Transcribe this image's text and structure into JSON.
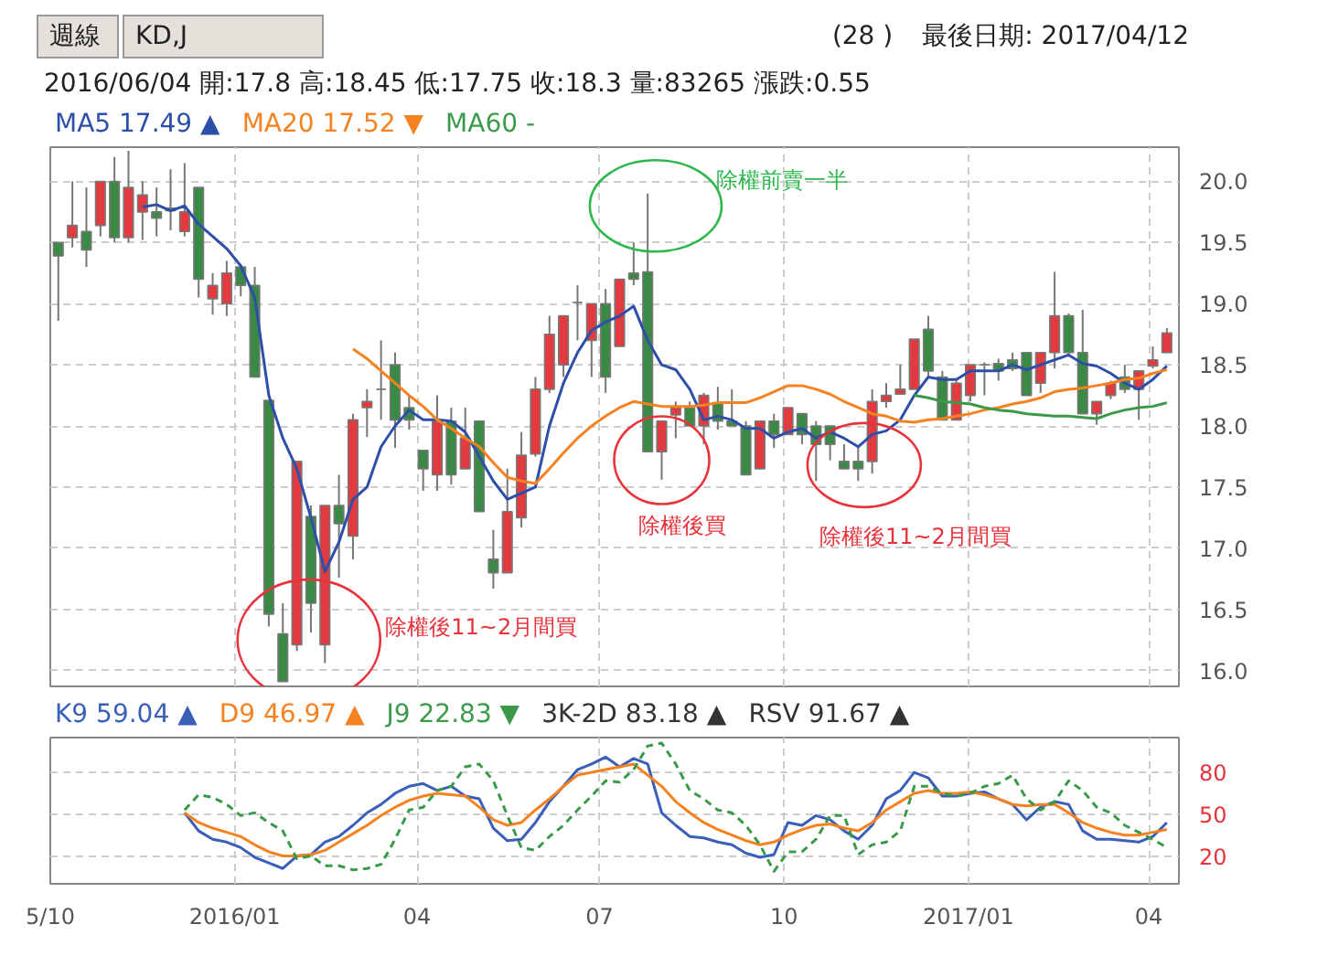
{
  "chart_data": [
    {
      "type": "candlestick",
      "title": "2016/06/04  開:17.8  高:18.45  低:17.75  收:18.3  量:83265  漲跌:0.55",
      "x": [
        "2015-10-05",
        "2015-10-12",
        "2015-10-19",
        "2015-10-26",
        "2015-11-02",
        "2015-11-09",
        "2015-11-16",
        "2015-11-23",
        "2015-11-30",
        "2015-12-07",
        "2015-12-14",
        "2015-12-21",
        "2015-12-28",
        "2016-01-04",
        "2016-01-11",
        "2016-01-18",
        "2016-01-25",
        "2016-02-01",
        "2016-02-08",
        "2016-02-15",
        "2016-02-22",
        "2016-02-29",
        "2016-03-07",
        "2016-03-14",
        "2016-03-21",
        "2016-03-28",
        "2016-04-04",
        "2016-04-11",
        "2016-04-18",
        "2016-04-25",
        "2016-05-02",
        "2016-05-09",
        "2016-05-16",
        "2016-05-23",
        "2016-05-30",
        "2016-06-06",
        "2016-06-13",
        "2016-06-20",
        "2016-06-27",
        "2016-07-04",
        "2016-07-11",
        "2016-07-18",
        "2016-07-25",
        "2016-08-01",
        "2016-08-08",
        "2016-08-15",
        "2016-08-22",
        "2016-08-29",
        "2016-09-05",
        "2016-09-12",
        "2016-09-19",
        "2016-09-26",
        "2016-10-03",
        "2016-10-10",
        "2016-10-17",
        "2016-10-24",
        "2016-10-31",
        "2016-11-07",
        "2016-11-14",
        "2016-11-21",
        "2016-11-28",
        "2016-12-05",
        "2016-12-12",
        "2016-12-19",
        "2016-12-26",
        "2017-01-02",
        "2017-01-09",
        "2017-01-16",
        "2017-01-23",
        "2017-01-30",
        "2017-02-06",
        "2017-02-13",
        "2017-02-20",
        "2017-02-27",
        "2017-03-06",
        "2017-03-13",
        "2017-03-20",
        "2017-03-27",
        "2017-04-03",
        "2017-04-10"
      ],
      "ohlc": [
        [
          19.5,
          19.5,
          18.86,
          19.39
        ],
        [
          19.54,
          20.0,
          19.46,
          19.64
        ],
        [
          19.59,
          19.95,
          19.3,
          19.44
        ],
        [
          19.64,
          20.0,
          19.55,
          20.0
        ],
        [
          20.0,
          20.2,
          19.5,
          19.54
        ],
        [
          19.54,
          20.25,
          19.5,
          19.95
        ],
        [
          19.75,
          20.0,
          19.52,
          19.89
        ],
        [
          19.75,
          19.95,
          19.55,
          19.7
        ],
        [
          19.78,
          20.1,
          19.6,
          19.76
        ],
        [
          19.59,
          20.15,
          19.55,
          19.75
        ],
        [
          19.95,
          19.95,
          19.05,
          19.2
        ],
        [
          19.04,
          19.25,
          18.91,
          19.15
        ],
        [
          19.0,
          19.35,
          18.9,
          19.25
        ],
        [
          19.3,
          19.32,
          19.06,
          19.15
        ],
        [
          19.15,
          19.3,
          18.4,
          18.4
        ],
        [
          18.21,
          18.21,
          16.36,
          16.46
        ],
        [
          16.3,
          16.55,
          15.91,
          15.91
        ],
        [
          16.21,
          17.71,
          16.16,
          17.71
        ],
        [
          17.26,
          17.35,
          16.31,
          16.55
        ],
        [
          16.21,
          17.35,
          16.06,
          17.35
        ],
        [
          17.35,
          17.6,
          16.76,
          17.2
        ],
        [
          17.1,
          18.1,
          16.91,
          18.05
        ],
        [
          18.15,
          18.3,
          17.91,
          18.2
        ],
        [
          18.3,
          18.7,
          18.05,
          18.3
        ],
        [
          18.5,
          18.6,
          17.82,
          18.05
        ],
        [
          18.15,
          18.25,
          17.97,
          18.05
        ],
        [
          17.8,
          17.8,
          17.47,
          17.65
        ],
        [
          17.6,
          18.25,
          17.47,
          18.04
        ],
        [
          18.04,
          18.15,
          17.52,
          17.6
        ],
        [
          17.65,
          18.15,
          17.65,
          17.9
        ],
        [
          18.04,
          18.04,
          17.3,
          17.3
        ],
        [
          16.91,
          17.15,
          16.67,
          16.8
        ],
        [
          16.8,
          17.65,
          16.8,
          17.3
        ],
        [
          17.25,
          17.95,
          17.17,
          17.76
        ],
        [
          17.77,
          18.4,
          17.75,
          18.3
        ],
        [
          18.3,
          18.9,
          18.27,
          18.75
        ],
        [
          18.5,
          18.9,
          18.4,
          18.9
        ],
        [
          19.01,
          19.15,
          18.7,
          19.01
        ],
        [
          18.7,
          19.0,
          18.4,
          19.0
        ],
        [
          19.0,
          19.12,
          18.27,
          18.4
        ],
        [
          18.65,
          19.2,
          18.65,
          19.2
        ],
        [
          19.25,
          19.5,
          19.15,
          19.2
        ],
        [
          19.26,
          19.9,
          17.79,
          17.79
        ],
        [
          17.79,
          18.04,
          17.56,
          18.04
        ],
        [
          18.09,
          18.2,
          17.9,
          18.15
        ],
        [
          18.15,
          18.2,
          18.0,
          18.0
        ],
        [
          18.0,
          18.27,
          17.85,
          18.25
        ],
        [
          18.19,
          18.32,
          17.97,
          18.04
        ],
        [
          18.04,
          18.3,
          18.0,
          18.0
        ],
        [
          18.0,
          18.04,
          17.6,
          17.6
        ],
        [
          17.65,
          18.04,
          17.65,
          18.04
        ],
        [
          18.04,
          18.1,
          17.82,
          17.93
        ],
        [
          17.93,
          18.15,
          17.93,
          18.15
        ],
        [
          18.1,
          18.1,
          17.85,
          17.93
        ],
        [
          18.0,
          18.04,
          17.55,
          17.85
        ],
        [
          18.0,
          18.0,
          17.72,
          17.85
        ],
        [
          17.71,
          17.85,
          17.65,
          17.65
        ],
        [
          17.71,
          17.83,
          17.55,
          17.65
        ],
        [
          17.71,
          18.3,
          17.61,
          18.2
        ],
        [
          18.2,
          18.35,
          18.15,
          18.25
        ],
        [
          18.26,
          18.5,
          18.26,
          18.3
        ],
        [
          18.3,
          18.71,
          18.3,
          18.71
        ],
        [
          18.79,
          18.9,
          18.4,
          18.45
        ],
        [
          18.4,
          18.45,
          18.05,
          18.05
        ],
        [
          18.05,
          18.37,
          18.05,
          18.35
        ],
        [
          18.25,
          18.5,
          18.2,
          18.5
        ],
        [
          18.5,
          18.52,
          18.25,
          18.5
        ],
        [
          18.51,
          18.55,
          18.37,
          18.45
        ],
        [
          18.54,
          18.6,
          18.45,
          18.47
        ],
        [
          18.6,
          18.6,
          18.25,
          18.25
        ],
        [
          18.35,
          18.6,
          18.27,
          18.6
        ],
        [
          18.6,
          19.26,
          18.47,
          18.9
        ],
        [
          18.9,
          18.92,
          18.57,
          18.6
        ],
        [
          18.6,
          18.95,
          18.1,
          18.1
        ],
        [
          18.1,
          18.2,
          18.01,
          18.2
        ],
        [
          18.25,
          18.37,
          18.22,
          18.35
        ],
        [
          18.4,
          18.5,
          18.27,
          18.3
        ],
        [
          18.3,
          18.45,
          18.05,
          18.45
        ],
        [
          18.49,
          18.65,
          18.47,
          18.54
        ],
        [
          18.6,
          18.8,
          18.6,
          18.76
        ]
      ],
      "series": [
        {
          "name": "MA5 17.49 ▲",
          "type": "line",
          "color": "#2e4fa8",
          "values": [
            null,
            null,
            null,
            null,
            null,
            null,
            19.79,
            19.81,
            19.76,
            19.8,
            19.65,
            19.55,
            19.45,
            19.31,
            19.05,
            18.25,
            17.9,
            17.65,
            17.25,
            16.81,
            17.05,
            17.4,
            17.5,
            17.83,
            18.0,
            18.13,
            18.05,
            18.05,
            18.04,
            17.95,
            17.75,
            17.55,
            17.4,
            17.45,
            17.5,
            18.0,
            18.35,
            18.6,
            18.78,
            18.85,
            18.9,
            18.98,
            18.7,
            18.5,
            18.46,
            18.3,
            18.05,
            18.08,
            18.05,
            17.98,
            17.98,
            17.9,
            17.95,
            17.98,
            17.9,
            17.95,
            17.9,
            17.83,
            17.93,
            17.96,
            18.05,
            18.25,
            18.4,
            18.38,
            18.38,
            18.45,
            18.45,
            18.45,
            18.5,
            18.46,
            18.5,
            18.54,
            18.58,
            18.51,
            18.49,
            18.43,
            18.35,
            18.3,
            18.38,
            18.49
          ]
        },
        {
          "name": "MA20 17.52 ▼",
          "type": "line",
          "color": "#f58220",
          "values": [
            null,
            null,
            null,
            null,
            null,
            null,
            null,
            null,
            null,
            null,
            null,
            null,
            null,
            null,
            null,
            null,
            null,
            null,
            null,
            null,
            null,
            18.63,
            18.55,
            18.45,
            18.35,
            18.25,
            18.16,
            18.05,
            17.98,
            17.9,
            17.83,
            17.7,
            17.58,
            17.55,
            17.53,
            17.65,
            17.78,
            17.9,
            18.0,
            18.08,
            18.15,
            18.2,
            18.18,
            18.16,
            18.16,
            18.16,
            18.17,
            18.19,
            18.19,
            18.19,
            18.23,
            18.28,
            18.33,
            18.33,
            18.3,
            18.26,
            18.2,
            18.15,
            18.1,
            18.08,
            18.04,
            18.03,
            18.05,
            18.06,
            18.08,
            18.1,
            18.13,
            18.15,
            18.18,
            18.2,
            18.23,
            18.28,
            18.3,
            18.31,
            18.33,
            18.35,
            18.38,
            18.39,
            18.43,
            18.46
          ]
        },
        {
          "name": "MA60 -",
          "type": "line",
          "color": "#3a9a4a",
          "values": [
            null,
            null,
            null,
            null,
            null,
            null,
            null,
            null,
            null,
            null,
            null,
            null,
            null,
            null,
            null,
            null,
            null,
            null,
            null,
            null,
            null,
            null,
            null,
            null,
            null,
            null,
            null,
            null,
            null,
            null,
            null,
            null,
            null,
            null,
            null,
            null,
            null,
            null,
            null,
            null,
            null,
            null,
            null,
            null,
            null,
            null,
            null,
            null,
            null,
            null,
            null,
            null,
            null,
            null,
            null,
            null,
            null,
            null,
            null,
            null,
            null,
            18.25,
            18.23,
            18.2,
            18.19,
            18.18,
            18.15,
            18.13,
            18.12,
            18.1,
            18.09,
            18.08,
            18.08,
            18.07,
            18.06,
            18.1,
            18.13,
            18.15,
            18.16,
            18.19
          ]
        }
      ],
      "xlim": [
        "2015-10-01",
        "2017-04-16"
      ],
      "ylim": [
        15.87,
        20.28
      ],
      "xticks": [
        "2015-10-01",
        "2016-01-01",
        "2016-04-01",
        "2016-07-01",
        "2016-10-01",
        "2017-01-01",
        "2017-04-01"
      ],
      "yticks": [
        {
          "value": 16,
          "label": "16.0"
        },
        {
          "value": 16.5,
          "label": "16.5"
        },
        {
          "value": 17,
          "label": "17.0"
        },
        {
          "value": 17.5,
          "label": "17.5"
        },
        {
          "value": 18,
          "label": "18.0"
        },
        {
          "value": 18.5,
          "label": "18.5"
        },
        {
          "value": 19,
          "label": "19.0"
        },
        {
          "value": 19.5,
          "label": "19.5"
        },
        {
          "value": 20,
          "label": "20.0"
        }
      ],
      "tick_labels": "y",
      "grid": true,
      "legend": "top",
      "annotations": [
        {
          "text": "除權後11~2月間買",
          "x": "2016-02-15",
          "y": 16.06
        },
        {
          "text": "除權前賣一半",
          "x": "2016-07-29",
          "y": 19.8
        },
        {
          "text": "除權後買",
          "x": "2016-08-01",
          "y": 17.72
        },
        {
          "text": "除權後11~2月間買",
          "x": "2016-11-10",
          "y": 17.68
        },
        "週線",
        "KD,J",
        "(28 )",
        "最後日期: 2017/04/12"
      ]
    },
    {
      "type": "line",
      "x": [
        "2015-12-07",
        "2015-12-14",
        "2015-12-21",
        "2015-12-28",
        "2016-01-04",
        "2016-01-11",
        "2016-01-18",
        "2016-01-25",
        "2016-02-01",
        "2016-02-08",
        "2016-02-15",
        "2016-02-22",
        "2016-02-29",
        "2016-03-07",
        "2016-03-14",
        "2016-03-21",
        "2016-03-28",
        "2016-04-04",
        "2016-04-11",
        "2016-04-18",
        "2016-04-25",
        "2016-05-02",
        "2016-05-09",
        "2016-05-16",
        "2016-05-23",
        "2016-05-30",
        "2016-06-06",
        "2016-06-13",
        "2016-06-20",
        "2016-06-27",
        "2016-07-04",
        "2016-07-11",
        "2016-07-18",
        "2016-07-25",
        "2016-08-01",
        "2016-08-08",
        "2016-08-15",
        "2016-08-22",
        "2016-08-29",
        "2016-09-05",
        "2016-09-12",
        "2016-09-19",
        "2016-09-26",
        "2016-10-03",
        "2016-10-10",
        "2016-10-17",
        "2016-10-24",
        "2016-10-31",
        "2016-11-07",
        "2016-11-14",
        "2016-11-21",
        "2016-11-28",
        "2016-12-05",
        "2016-12-12",
        "2016-12-19",
        "2016-12-26",
        "2017-01-02",
        "2017-01-09",
        "2017-01-16",
        "2017-01-23",
        "2017-01-30",
        "2017-02-06",
        "2017-02-13",
        "2017-02-20",
        "2017-02-27",
        "2017-03-06",
        "2017-03-13",
        "2017-03-20",
        "2017-03-27",
        "2017-04-03",
        "2017-04-10"
      ],
      "series": [
        {
          "name": "K9 59.04 ▲",
          "color": "#3a5fb8",
          "values": [
            51,
            38,
            32,
            30,
            26,
            19,
            15,
            11,
            20,
            21,
            30,
            34,
            42,
            51,
            57,
            65,
            70,
            72,
            67,
            70,
            63,
            61,
            40,
            31,
            32,
            44,
            59,
            70,
            82,
            86,
            91,
            84,
            90,
            86,
            51,
            42,
            34,
            33,
            30,
            28,
            22,
            19,
            21,
            44,
            42,
            49,
            46,
            38,
            32,
            42,
            61,
            67,
            80,
            76,
            63,
            63,
            65,
            66,
            61,
            57,
            46,
            55,
            59,
            57,
            38,
            32,
            32,
            31,
            30,
            34,
            44
          ]
        },
        {
          "name": "D9 46.97 ▲",
          "color": "#f58220",
          "values": [
            51,
            44,
            40,
            37,
            34,
            28,
            23,
            20,
            20,
            21,
            24,
            30,
            36,
            42,
            49,
            55,
            60,
            63,
            65,
            64,
            63,
            55,
            46,
            42,
            44,
            53,
            61,
            70,
            78,
            80,
            82,
            84,
            86,
            78,
            70,
            59,
            51,
            44,
            39,
            35,
            31,
            28,
            30,
            35,
            39,
            42,
            43,
            40,
            38,
            44,
            53,
            59,
            65,
            67,
            65,
            65,
            66,
            64,
            61,
            57,
            56,
            57,
            57,
            51,
            44,
            40,
            37,
            35,
            35,
            37,
            39
          ]
        },
        {
          "name": "J9 22.83 ▼",
          "color": "#3a9a4a",
          "line_style": "dashed",
          "values": [
            53,
            64,
            62,
            57,
            49,
            51,
            44,
            38,
            18,
            20,
            13,
            13,
            10,
            11,
            14,
            32,
            53,
            55,
            67,
            70,
            84,
            86,
            74,
            49,
            26,
            24,
            34,
            42,
            53,
            63,
            74,
            73,
            82,
            99,
            101,
            86,
            67,
            61,
            53,
            51,
            42,
            28,
            9,
            23,
            23,
            32,
            49,
            49,
            21,
            28,
            30,
            38,
            70,
            70,
            65,
            63,
            65,
            70,
            72,
            78,
            61,
            53,
            59,
            74,
            67,
            55,
            51,
            42,
            37,
            32,
            26
          ]
        }
      ],
      "xlim": [
        "2015-10-01",
        "2017-04-16"
      ],
      "ylim": [
        0,
        105
      ],
      "xticks": [
        {
          "value": "2015-10-01",
          "label": "5/10"
        },
        {
          "value": "2016-01-01",
          "label": "2016/01"
        },
        {
          "value": "2016-04-01",
          "label": "04"
        },
        {
          "value": "2016-07-01",
          "label": "07"
        },
        {
          "value": "2016-10-01",
          "label": "10"
        },
        {
          "value": "2017-01-01",
          "label": "2017/01"
        },
        {
          "value": "2017-04-01",
          "label": "04"
        }
      ],
      "yticks": [
        20,
        50,
        80
      ],
      "grid": true,
      "legend": "top",
      "annotations": [
        "3K-2D 83.18 ▲",
        "RSV 91.67 ▲"
      ]
    }
  ]
}
